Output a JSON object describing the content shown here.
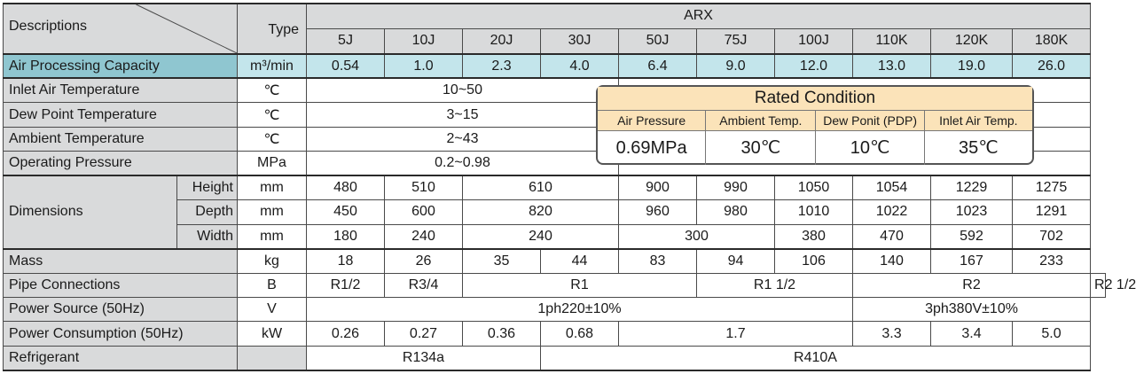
{
  "header": {
    "descriptions": "Descriptions",
    "type": "Type",
    "series": "ARX",
    "models": [
      "5J",
      "10J",
      "20J",
      "30J",
      "50J",
      "75J",
      "100J",
      "110K",
      "120K",
      "180K"
    ]
  },
  "rows": {
    "air_processing": {
      "label": "Air Processing Capacity",
      "unit": "m³/min",
      "values": [
        "0.54",
        "1.0",
        "2.3",
        "4.0",
        "6.4",
        "9.0",
        "12.0",
        "13.0",
        "19.0",
        "26.0"
      ]
    },
    "inlet_air_temp": {
      "label": "Inlet Air Temperature",
      "unit": "℃",
      "value": "10~50"
    },
    "dew_point_temp": {
      "label": "Dew Point Temperature",
      "unit": "℃",
      "value": "3~15"
    },
    "ambient_temp": {
      "label": "Ambient Temperature",
      "unit": "℃",
      "value": "2~43"
    },
    "operating_pressure": {
      "label": "Operating Pressure",
      "unit": "MPa",
      "value": "0.2~0.98"
    },
    "dimensions": {
      "label": "Dimensions",
      "height": {
        "label": "Height",
        "unit": "mm",
        "values": [
          "480",
          "510",
          "610",
          "900",
          "990",
          "1050",
          "1054",
          "1229",
          "1275"
        ]
      },
      "depth": {
        "label": "Depth",
        "unit": "mm",
        "values": [
          "450",
          "600",
          "820",
          "960",
          "980",
          "1010",
          "1022",
          "1023",
          "1291"
        ]
      },
      "width": {
        "label": "Width",
        "unit": "mm",
        "values": [
          "180",
          "240",
          "240",
          "300",
          "380",
          "470",
          "592",
          "702"
        ]
      }
    },
    "mass": {
      "label": "Mass",
      "unit": "kg",
      "values": [
        "18",
        "26",
        "35",
        "44",
        "83",
        "94",
        "106",
        "140",
        "167",
        "233"
      ]
    },
    "pipe_connections": {
      "label": "Pipe Connections",
      "unit": "B",
      "values": [
        "R1/2",
        "R3/4",
        "R1",
        "R1 1/2",
        "R2",
        "R2 1/2"
      ]
    },
    "power_source": {
      "label": "Power Source (50Hz)",
      "unit": "V",
      "values": [
        "1ph220±10%",
        "3ph380V±10%"
      ]
    },
    "power_consumption": {
      "label": "Power Consumption (50Hz)",
      "unit": "kW",
      "values": [
        "0.26",
        "0.27",
        "0.36",
        "0.68",
        "1.7",
        "3.3",
        "3.4",
        "5.0"
      ]
    },
    "refrigerant": {
      "label": "Refrigerant",
      "unit": "",
      "values": [
        "R134a",
        "R410A"
      ]
    }
  },
  "rated_condition": {
    "title": "Rated Condition",
    "columns": [
      "Air Pressure",
      "Ambient Temp.",
      "Dew Ponit (PDP)",
      "Inlet Air Temp."
    ],
    "values": [
      "0.69MPa",
      "30℃",
      "10℃",
      "35℃"
    ]
  },
  "colors": {
    "highlight_label": "#8fc6d0",
    "highlight_cell": "#c3e5eb",
    "label_grey": "#d9dadb",
    "rated_header": "#fbe3b9"
  }
}
